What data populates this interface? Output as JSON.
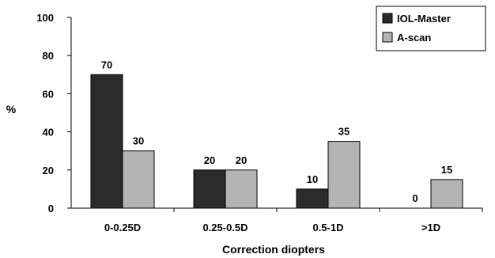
{
  "chart_data": {
    "type": "bar",
    "title": "",
    "xlabel": "Correction diopters",
    "ylabel": "%",
    "ylim": [
      0,
      100
    ],
    "yticks": [
      0,
      20,
      40,
      60,
      80,
      100
    ],
    "categories": [
      "0-0.25D",
      "0.25-0.5D",
      "0.5-1D",
      ">1D"
    ],
    "series": [
      {
        "name": "IOL-Master",
        "values": [
          70,
          20,
          10,
          0
        ],
        "color": "#2b2b2b"
      },
      {
        "name": "A-scan",
        "values": [
          30,
          20,
          35,
          15
        ],
        "color": "#b4b4b4"
      }
    ],
    "legend": "top-right",
    "grid": false
  }
}
